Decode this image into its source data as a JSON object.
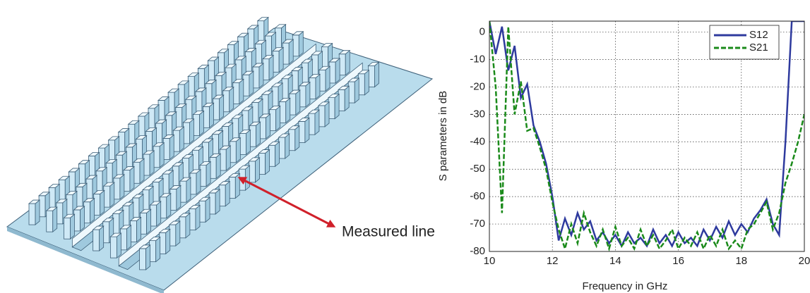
{
  "illustration": {
    "label": "Measured line"
  },
  "chart_data": {
    "type": "line",
    "x_label": "Frequency in GHz",
    "y_label": "S parameters in dB",
    "x": [
      10,
      10.2,
      10.4,
      10.6,
      10.8,
      11,
      11.2,
      11.4,
      11.6,
      11.8,
      12,
      12.2,
      12.4,
      12.6,
      12.8,
      13,
      13.2,
      13.4,
      13.6,
      13.8,
      14,
      14.2,
      14.4,
      14.6,
      14.8,
      15,
      15.2,
      15.4,
      15.6,
      15.8,
      16,
      16.2,
      16.4,
      16.6,
      16.8,
      17,
      17.2,
      17.4,
      17.6,
      17.8,
      18,
      18.2,
      18.4,
      18.6,
      18.8,
      19,
      19.2,
      19.4,
      19.6,
      19.8,
      20
    ],
    "series": [
      {
        "name": "S12",
        "color": "#2e3a9e",
        "linestyle": "solid",
        "values": [
          4,
          -8,
          2,
          -14,
          -5,
          -24,
          -19,
          -34,
          -40,
          -48,
          -60,
          -76,
          -68,
          -74,
          -66,
          -72,
          -69,
          -76,
          -73,
          -77,
          -74,
          -78,
          -73,
          -77,
          -75,
          -78,
          -72,
          -77,
          -74,
          -78,
          -73,
          -77,
          -75,
          -78,
          -72,
          -76,
          -71,
          -75,
          -69,
          -74,
          -70,
          -73,
          -68,
          -65,
          -61,
          -70,
          -74,
          -40,
          4,
          4,
          4
        ]
      },
      {
        "name": "S21",
        "color": "#1a8a1a",
        "linestyle": "dashed",
        "values": [
          4,
          -20,
          -66,
          2,
          -30,
          -18,
          -36,
          -35,
          -42,
          -50,
          -62,
          -72,
          -79,
          -70,
          -77,
          -66,
          -73,
          -78,
          -72,
          -79,
          -71,
          -78,
          -75,
          -79,
          -72,
          -78,
          -74,
          -79,
          -76,
          -72,
          -79,
          -75,
          -78,
          -73,
          -79,
          -74,
          -78,
          -72,
          -79,
          -76,
          -79,
          -72,
          -70,
          -66,
          -62,
          -72,
          -66,
          -55,
          -48,
          -40,
          -30
        ]
      }
    ],
    "xlim": [
      10,
      20
    ],
    "ylim": [
      -80,
      4
    ],
    "xticks": [
      10,
      12,
      14,
      16,
      18,
      20
    ],
    "yticks": [
      0,
      -10,
      -20,
      -30,
      -40,
      -50,
      -60,
      -70,
      -80
    ],
    "grid": true,
    "legend": "upper right"
  }
}
